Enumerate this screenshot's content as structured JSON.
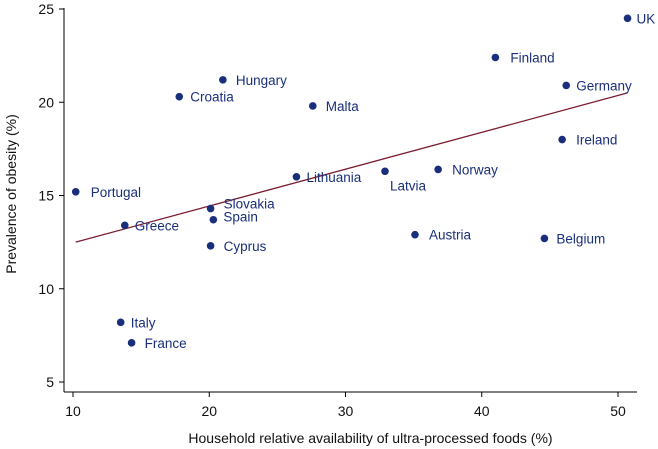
{
  "chart_data": {
    "type": "scatter",
    "title": "",
    "xlabel": "Household relative availability of ultra-processed foods (%)",
    "ylabel": "Prevalence of obesity (%)",
    "xlim": [
      9,
      52
    ],
    "ylim": [
      4,
      25.2
    ],
    "xticks": [
      10,
      20,
      30,
      40,
      50
    ],
    "yticks": [
      5,
      10,
      15,
      20,
      25
    ],
    "grid": false,
    "colors": {
      "point": "#1a2f7c",
      "label": "#1a2f7c",
      "trendline": "#7a1c2e",
      "axis": "#000000"
    },
    "points": [
      {
        "country": "UK",
        "x": 50.7,
        "y": 24.5
      },
      {
        "country": "Finland",
        "x": 41.0,
        "y": 22.4
      },
      {
        "country": "Germany",
        "x": 46.2,
        "y": 20.9
      },
      {
        "country": "Hungary",
        "x": 21.0,
        "y": 21.2
      },
      {
        "country": "Croatia",
        "x": 17.8,
        "y": 20.3
      },
      {
        "country": "Malta",
        "x": 27.6,
        "y": 19.8
      },
      {
        "country": "Ireland",
        "x": 45.9,
        "y": 18.0
      },
      {
        "country": "Norway",
        "x": 36.8,
        "y": 16.4
      },
      {
        "country": "Latvia",
        "x": 32.9,
        "y": 16.3
      },
      {
        "country": "Lithuania",
        "x": 26.4,
        "y": 16.0
      },
      {
        "country": "Portugal",
        "x": 10.2,
        "y": 15.2
      },
      {
        "country": "Slovakia",
        "x": 20.1,
        "y": 14.3
      },
      {
        "country": "Spain",
        "x": 20.3,
        "y": 13.7
      },
      {
        "country": "Greece",
        "x": 13.8,
        "y": 13.4
      },
      {
        "country": "Austria",
        "x": 35.1,
        "y": 12.9
      },
      {
        "country": "Belgium",
        "x": 44.6,
        "y": 12.7
      },
      {
        "country": "Cyprus",
        "x": 20.1,
        "y": 12.3
      },
      {
        "country": "Italy",
        "x": 13.5,
        "y": 8.2
      },
      {
        "country": "France",
        "x": 14.3,
        "y": 7.1
      }
    ],
    "trendline": {
      "x0": 10.2,
      "y0": 12.5,
      "x1": 50.7,
      "y1": 20.5
    }
  }
}
